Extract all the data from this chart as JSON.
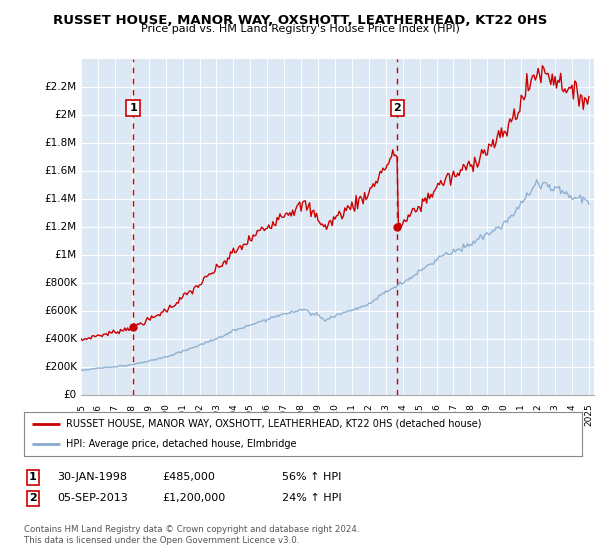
{
  "title": "RUSSET HOUSE, MANOR WAY, OXSHOTT, LEATHERHEAD, KT22 0HS",
  "subtitle": "Price paid vs. HM Land Registry's House Price Index (HPI)",
  "legend_line1": "RUSSET HOUSE, MANOR WAY, OXSHOTT, LEATHERHEAD, KT22 0HS (detached house)",
  "legend_line2": "HPI: Average price, detached house, Elmbridge",
  "annotation1_label": "1",
  "annotation1_date": "30-JAN-1998",
  "annotation1_price": "£485,000",
  "annotation1_hpi": "56% ↑ HPI",
  "annotation2_label": "2",
  "annotation2_date": "05-SEP-2013",
  "annotation2_price": "£1,200,000",
  "annotation2_hpi": "24% ↑ HPI",
  "footer": "Contains HM Land Registry data © Crown copyright and database right 2024.\nThis data is licensed under the Open Government Licence v3.0.",
  "background_color": "#dce9f5",
  "grid_color": "#ffffff",
  "red_line_color": "#cc0000",
  "blue_line_color": "#88aacc",
  "dashed_line_color": "#cc0000",
  "annotation_box_color": "#cc0000",
  "ylim": [
    0,
    2400000
  ],
  "yticks": [
    0,
    200000,
    400000,
    600000,
    800000,
    1000000,
    1200000,
    1400000,
    1600000,
    1800000,
    2000000,
    2200000
  ],
  "ytick_labels": [
    "£0",
    "£200K",
    "£400K",
    "£600K",
    "£800K",
    "£1M",
    "£1.2M",
    "£1.4M",
    "£1.6M",
    "£1.8M",
    "£2M",
    "£2.2M"
  ],
  "sale1_x": 1998.08,
  "sale1_y": 485000,
  "sale2_x": 2013.68,
  "sale2_y": 1200000,
  "xmin": 1995.0,
  "xmax": 2025.3
}
